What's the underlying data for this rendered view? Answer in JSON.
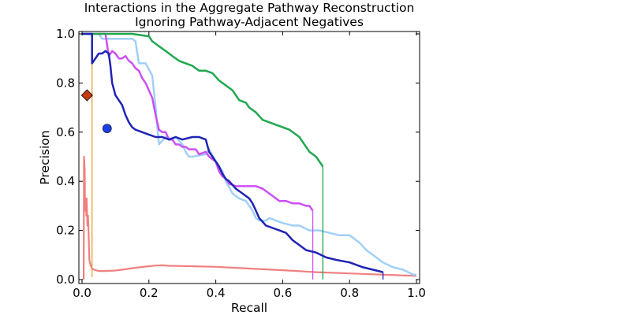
{
  "chart_data": {
    "type": "line",
    "title": "Interactions in the Aggregate Pathway Reconstruction",
    "subtitle": "Ignoring Pathway-Adjacent Negatives",
    "xlabel": "Recall",
    "ylabel": "Precision",
    "xlim": [
      0.0,
      1.0
    ],
    "ylim": [
      0.0,
      1.0
    ],
    "xticks": [
      "0.0",
      "0.2",
      "0.4",
      "0.6",
      "0.8",
      "1.0"
    ],
    "yticks": [
      "0.0",
      "0.2",
      "0.4",
      "0.6",
      "0.8",
      "1.0"
    ],
    "grid": false,
    "series": [
      {
        "color": "#f08080",
        "width": 2.2,
        "points": [
          [
            0.005,
            0.0
          ],
          [
            0.006,
            0.5
          ],
          [
            0.008,
            0.45
          ],
          [
            0.009,
            0.28
          ],
          [
            0.011,
            0.33
          ],
          [
            0.013,
            0.26
          ],
          [
            0.014,
            0.33
          ],
          [
            0.016,
            0.22
          ],
          [
            0.018,
            0.26
          ],
          [
            0.02,
            0.17
          ],
          [
            0.022,
            0.08
          ],
          [
            0.025,
            0.06
          ],
          [
            0.03,
            0.045
          ],
          [
            0.04,
            0.038
          ],
          [
            0.05,
            0.035
          ],
          [
            0.07,
            0.035
          ],
          [
            0.1,
            0.037
          ],
          [
            0.13,
            0.042
          ],
          [
            0.16,
            0.048
          ],
          [
            0.19,
            0.053
          ],
          [
            0.22,
            0.057
          ],
          [
            0.24,
            0.058
          ],
          [
            0.26,
            0.056
          ],
          [
            0.3,
            0.055
          ],
          [
            0.4,
            0.052
          ],
          [
            0.5,
            0.045
          ],
          [
            0.6,
            0.038
          ],
          [
            0.7,
            0.03
          ],
          [
            0.8,
            0.025
          ],
          [
            0.9,
            0.02
          ],
          [
            1.0,
            0.015
          ]
        ],
        "drop": 0
      },
      {
        "color": "#e8a030",
        "width": 1.3,
        "points": [
          [
            0.03,
            1.0
          ],
          [
            0.03,
            0.01
          ]
        ],
        "drop": 0
      },
      {
        "color": "#7fff00",
        "width": 1.5,
        "points": [
          [
            0.0,
            1.0
          ],
          [
            0.03,
            1.0
          ]
        ],
        "drop": 0
      },
      {
        "color": "#a0d0f8",
        "width": 2.5,
        "points": [
          [
            0.0,
            1.0
          ],
          [
            0.05,
            1.0
          ],
          [
            0.06,
            0.98
          ],
          [
            0.1,
            0.98
          ],
          [
            0.15,
            0.98
          ],
          [
            0.16,
            0.97
          ],
          [
            0.17,
            0.88
          ],
          [
            0.19,
            0.88
          ],
          [
            0.21,
            0.83
          ],
          [
            0.22,
            0.7
          ],
          [
            0.23,
            0.55
          ],
          [
            0.25,
            0.58
          ],
          [
            0.27,
            0.57
          ],
          [
            0.28,
            0.58
          ],
          [
            0.3,
            0.55
          ],
          [
            0.31,
            0.52
          ],
          [
            0.32,
            0.5
          ],
          [
            0.33,
            0.5
          ],
          [
            0.37,
            0.51
          ],
          [
            0.38,
            0.53
          ],
          [
            0.4,
            0.48
          ],
          [
            0.42,
            0.44
          ],
          [
            0.43,
            0.4
          ],
          [
            0.45,
            0.35
          ],
          [
            0.47,
            0.33
          ],
          [
            0.49,
            0.32
          ],
          [
            0.5,
            0.3
          ],
          [
            0.51,
            0.28
          ],
          [
            0.52,
            0.25
          ],
          [
            0.53,
            0.24
          ],
          [
            0.55,
            0.24
          ],
          [
            0.56,
            0.25
          ],
          [
            0.58,
            0.24
          ],
          [
            0.6,
            0.23
          ],
          [
            0.63,
            0.22
          ],
          [
            0.65,
            0.22
          ],
          [
            0.68,
            0.2
          ],
          [
            0.71,
            0.2
          ],
          [
            0.74,
            0.19
          ],
          [
            0.77,
            0.18
          ],
          [
            0.8,
            0.18
          ],
          [
            0.83,
            0.15
          ],
          [
            0.85,
            0.12
          ],
          [
            0.88,
            0.09
          ],
          [
            0.9,
            0.07
          ],
          [
            0.93,
            0.05
          ],
          [
            0.96,
            0.04
          ],
          [
            0.99,
            0.02
          ],
          [
            1.0,
            0.02
          ]
        ],
        "drop": 0
      },
      {
        "color": "#cc4ff2",
        "width": 2.5,
        "points": [
          [
            0.0,
            1.0
          ],
          [
            0.07,
            1.0
          ],
          [
            0.08,
            0.91
          ],
          [
            0.09,
            0.93
          ],
          [
            0.1,
            0.92
          ],
          [
            0.11,
            0.9
          ],
          [
            0.12,
            0.9
          ],
          [
            0.13,
            0.91
          ],
          [
            0.14,
            0.89
          ],
          [
            0.15,
            0.88
          ],
          [
            0.16,
            0.86
          ],
          [
            0.17,
            0.85
          ],
          [
            0.18,
            0.82
          ],
          [
            0.19,
            0.8
          ],
          [
            0.2,
            0.77
          ],
          [
            0.21,
            0.74
          ],
          [
            0.22,
            0.67
          ],
          [
            0.23,
            0.61
          ],
          [
            0.24,
            0.6
          ],
          [
            0.25,
            0.6
          ],
          [
            0.26,
            0.57
          ],
          [
            0.27,
            0.57
          ],
          [
            0.28,
            0.55
          ],
          [
            0.29,
            0.55
          ],
          [
            0.3,
            0.54
          ],
          [
            0.31,
            0.54
          ],
          [
            0.32,
            0.53
          ],
          [
            0.34,
            0.53
          ],
          [
            0.35,
            0.51
          ],
          [
            0.37,
            0.52
          ],
          [
            0.38,
            0.5
          ],
          [
            0.4,
            0.48
          ],
          [
            0.41,
            0.44
          ],
          [
            0.42,
            0.42
          ],
          [
            0.43,
            0.41
          ],
          [
            0.44,
            0.39
          ],
          [
            0.46,
            0.38
          ],
          [
            0.48,
            0.38
          ],
          [
            0.5,
            0.38
          ],
          [
            0.51,
            0.38
          ],
          [
            0.52,
            0.38
          ],
          [
            0.54,
            0.37
          ],
          [
            0.56,
            0.35
          ],
          [
            0.57,
            0.34
          ],
          [
            0.59,
            0.32
          ],
          [
            0.61,
            0.32
          ],
          [
            0.63,
            0.31
          ],
          [
            0.65,
            0.31
          ],
          [
            0.67,
            0.3
          ],
          [
            0.68,
            0.3
          ],
          [
            0.69,
            0.28
          ]
        ],
        "drop": 0.69
      },
      {
        "color": "#1fa84f",
        "width": 2.5,
        "points": [
          [
            0.0,
            1.0
          ],
          [
            0.1,
            1.0
          ],
          [
            0.15,
            1.0
          ],
          [
            0.2,
            0.99
          ],
          [
            0.21,
            0.97
          ],
          [
            0.23,
            0.95
          ],
          [
            0.25,
            0.93
          ],
          [
            0.27,
            0.91
          ],
          [
            0.29,
            0.89
          ],
          [
            0.31,
            0.88
          ],
          [
            0.33,
            0.87
          ],
          [
            0.35,
            0.85
          ],
          [
            0.37,
            0.85
          ],
          [
            0.39,
            0.84
          ],
          [
            0.41,
            0.81
          ],
          [
            0.43,
            0.79
          ],
          [
            0.45,
            0.77
          ],
          [
            0.47,
            0.73
          ],
          [
            0.49,
            0.72
          ],
          [
            0.5,
            0.7
          ],
          [
            0.52,
            0.68
          ],
          [
            0.54,
            0.65
          ],
          [
            0.56,
            0.64
          ],
          [
            0.58,
            0.63
          ],
          [
            0.6,
            0.62
          ],
          [
            0.62,
            0.61
          ],
          [
            0.63,
            0.6
          ],
          [
            0.65,
            0.58
          ],
          [
            0.66,
            0.56
          ],
          [
            0.67,
            0.54
          ],
          [
            0.68,
            0.52
          ],
          [
            0.7,
            0.5
          ],
          [
            0.71,
            0.48
          ],
          [
            0.72,
            0.46
          ]
        ],
        "drop": 0.72
      },
      {
        "color": "#1f24b4",
        "width": 2.5,
        "points": [
          [
            0.0,
            1.0
          ],
          [
            0.03,
            1.0
          ],
          [
            0.03,
            0.88
          ],
          [
            0.04,
            0.9
          ],
          [
            0.05,
            0.92
          ],
          [
            0.06,
            0.92
          ],
          [
            0.07,
            0.93
          ],
          [
            0.08,
            0.92
          ],
          [
            0.085,
            0.87
          ],
          [
            0.09,
            0.8
          ],
          [
            0.1,
            0.75
          ],
          [
            0.11,
            0.73
          ],
          [
            0.12,
            0.71
          ],
          [
            0.13,
            0.67
          ],
          [
            0.14,
            0.64
          ],
          [
            0.15,
            0.62
          ],
          [
            0.16,
            0.61
          ],
          [
            0.18,
            0.6
          ],
          [
            0.2,
            0.59
          ],
          [
            0.22,
            0.58
          ],
          [
            0.24,
            0.58
          ],
          [
            0.26,
            0.57
          ],
          [
            0.28,
            0.58
          ],
          [
            0.3,
            0.57
          ],
          [
            0.33,
            0.58
          ],
          [
            0.35,
            0.58
          ],
          [
            0.37,
            0.57
          ],
          [
            0.38,
            0.52
          ],
          [
            0.39,
            0.5
          ],
          [
            0.4,
            0.48
          ],
          [
            0.41,
            0.46
          ],
          [
            0.42,
            0.43
          ],
          [
            0.43,
            0.41
          ],
          [
            0.44,
            0.4
          ],
          [
            0.46,
            0.37
          ],
          [
            0.48,
            0.35
          ],
          [
            0.5,
            0.33
          ],
          [
            0.51,
            0.31
          ],
          [
            0.52,
            0.28
          ],
          [
            0.53,
            0.25
          ],
          [
            0.55,
            0.22
          ],
          [
            0.57,
            0.21
          ],
          [
            0.59,
            0.2
          ],
          [
            0.61,
            0.19
          ],
          [
            0.63,
            0.16
          ],
          [
            0.65,
            0.14
          ],
          [
            0.67,
            0.12
          ],
          [
            0.7,
            0.11
          ],
          [
            0.73,
            0.09
          ],
          [
            0.76,
            0.08
          ],
          [
            0.8,
            0.07
          ],
          [
            0.84,
            0.05
          ],
          [
            0.87,
            0.04
          ],
          [
            0.9,
            0.03
          ]
        ],
        "drop": 0.9
      }
    ],
    "markers": [
      {
        "shape": "diamond",
        "x": 0.015,
        "y": 0.75,
        "color": "#c23a0e"
      },
      {
        "shape": "circle",
        "x": 0.075,
        "y": 0.615,
        "color": "#1a3ee8"
      }
    ]
  }
}
